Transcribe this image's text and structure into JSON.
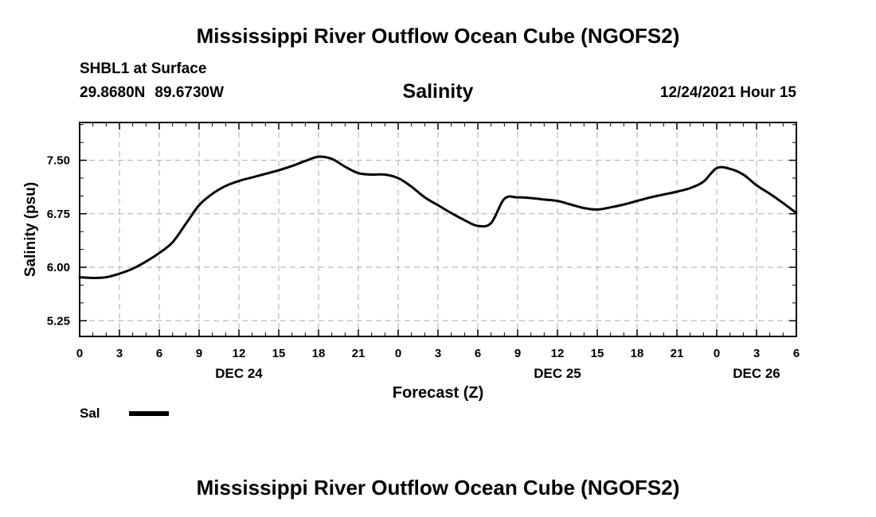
{
  "header": {
    "title": "Mississippi River Outflow Ocean Cube (NGOFS2)",
    "station": "SHBL1 at Surface",
    "lat": "29.8680N",
    "lon": "89.6730W",
    "variable": "Salinity",
    "datestamp": "12/24/2021 Hour 15"
  },
  "footer": {
    "title": "Mississippi River Outflow Ocean Cube (NGOFS2)"
  },
  "colors": {
    "line": "#000000",
    "grid": "#bbbbbb",
    "axis": "#000000"
  },
  "chart_data": {
    "type": "line",
    "title": "Salinity",
    "xlabel": "Forecast (Z)",
    "ylabel": "Salinity (psu)",
    "xlim": [
      0,
      54
    ],
    "ylim": [
      5.03,
      8.03
    ],
    "grid": true,
    "legend_position": "bottom-left",
    "x_ticks": [
      0,
      3,
      6,
      9,
      12,
      15,
      18,
      21,
      24,
      27,
      30,
      33,
      36,
      39,
      42,
      45,
      48,
      51,
      54
    ],
    "x_tick_labels": [
      "0",
      "3",
      "6",
      "9",
      "12",
      "15",
      "18",
      "21",
      "0",
      "3",
      "6",
      "9",
      "12",
      "15",
      "18",
      "21",
      "0",
      "3",
      "6"
    ],
    "day_labels": [
      {
        "x": 12,
        "label": "DEC 24"
      },
      {
        "x": 36,
        "label": "DEC 25"
      },
      {
        "x": 51,
        "label": "DEC 26"
      }
    ],
    "y_ticks": [
      5.25,
      6.0,
      6.75,
      7.5
    ],
    "y_tick_labels": [
      "5.25",
      "6.00",
      "6.75",
      "7.50"
    ],
    "series": [
      {
        "name": "Sal",
        "x": [
          0,
          1,
          2,
          3,
          4,
          5,
          6,
          7,
          8,
          9,
          10,
          11,
          12,
          13,
          14,
          15,
          16,
          17,
          18,
          19,
          20,
          21,
          22,
          23,
          24,
          25,
          26,
          27,
          28,
          29,
          30,
          31,
          32,
          33,
          34,
          35,
          36,
          37,
          38,
          39,
          40,
          41,
          42,
          43,
          44,
          45,
          46,
          47,
          48,
          49,
          50,
          51,
          52,
          53,
          54
        ],
        "values": [
          5.86,
          5.85,
          5.86,
          5.91,
          5.98,
          6.08,
          6.2,
          6.35,
          6.61,
          6.87,
          7.03,
          7.14,
          7.21,
          7.26,
          7.31,
          7.36,
          7.42,
          7.49,
          7.55,
          7.52,
          7.41,
          7.32,
          7.3,
          7.3,
          7.25,
          7.13,
          6.98,
          6.87,
          6.76,
          6.66,
          6.58,
          6.62,
          6.96,
          6.98,
          6.97,
          6.95,
          6.93,
          6.88,
          6.83,
          6.81,
          6.84,
          6.88,
          6.93,
          6.98,
          7.02,
          7.06,
          7.11,
          7.2,
          7.39,
          7.38,
          7.3,
          7.15,
          7.03,
          6.9,
          6.76
        ]
      }
    ]
  },
  "legend": {
    "label": "Sal"
  }
}
